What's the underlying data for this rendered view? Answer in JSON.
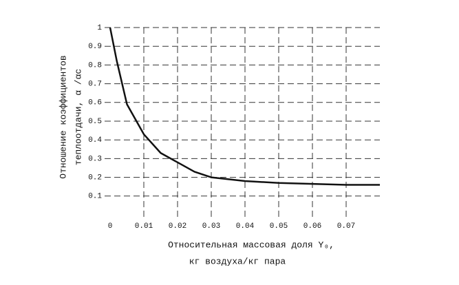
{
  "chart_data": {
    "type": "line",
    "y_label": [
      "Отношение коэффициентов",
      "теплоотдачи, α /αс"
    ],
    "x_label": [
      "Относительная массовая доля Y₀,",
      "кг воздуха/кг пара"
    ],
    "x": [
      0,
      0.002,
      0.005,
      0.01,
      0.015,
      0.02,
      0.025,
      0.03,
      0.04,
      0.05,
      0.06,
      0.07,
      0.08
    ],
    "series": [
      {
        "color": "#111111",
        "values": [
          1.0,
          0.82,
          0.59,
          0.43,
          0.33,
          0.28,
          0.23,
          0.2,
          0.18,
          0.17,
          0.165,
          0.16,
          0.16
        ]
      }
    ],
    "xlim": [
      0,
      0.08
    ],
    "ylim": [
      0,
      1
    ],
    "xticks": [
      0,
      0.01,
      0.02,
      0.03,
      0.04,
      0.05,
      0.06,
      0.07
    ],
    "yticks": [
      0.1,
      0.2,
      0.3,
      0.4,
      0.5,
      0.6,
      0.7,
      0.8,
      0.9,
      1
    ],
    "grid": true
  }
}
